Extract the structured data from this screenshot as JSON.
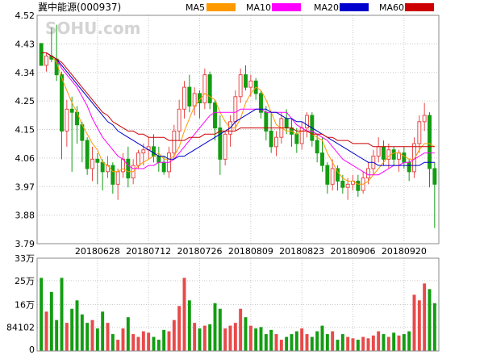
{
  "title": "冀中能源(000937)",
  "watermark": "SOHU.com",
  "legend": [
    {
      "name": "MA5",
      "color": "#ff9900"
    },
    {
      "name": "MA10",
      "color": "#ff00ff"
    },
    {
      "name": "MA20",
      "color": "#0000cc"
    },
    {
      "name": "MA60",
      "color": "#cc0000"
    }
  ],
  "colors": {
    "up": "#e84a4a",
    "down": "#129d12",
    "grid": "#c9c9c9",
    "frame": "#888888"
  },
  "chart_data": [
    {
      "type": "candlestick",
      "ylim": [
        3.79,
        4.52
      ],
      "yticks": [
        "4.52",
        "4.43",
        "4.34",
        "4.25",
        "4.15",
        "4.06",
        "3.97",
        "3.88",
        "3.79"
      ],
      "xticks": [
        {
          "label": "20180628",
          "index": 11
        },
        {
          "label": "20180712",
          "index": 21
        },
        {
          "label": "20180726",
          "index": 31
        },
        {
          "label": "20180809",
          "index": 41
        },
        {
          "label": "20180823",
          "index": 51
        },
        {
          "label": "20180906",
          "index": 61
        },
        {
          "label": "20180920",
          "index": 71
        }
      ],
      "ohlc": [
        [
          4.43,
          4.43,
          4.36,
          4.36
        ],
        [
          4.36,
          4.4,
          4.34,
          4.39
        ],
        [
          4.39,
          4.48,
          4.37,
          4.38
        ],
        [
          4.38,
          4.49,
          4.31,
          4.33
        ],
        [
          4.33,
          4.34,
          4.06,
          4.15
        ],
        [
          4.15,
          4.25,
          4.1,
          4.22
        ],
        [
          4.22,
          4.26,
          4.02,
          4.21
        ],
        [
          4.21,
          4.23,
          4.11,
          4.17
        ],
        [
          4.17,
          4.18,
          4.05,
          4.12
        ],
        [
          4.12,
          4.13,
          4.01,
          4.03
        ],
        [
          4.03,
          4.1,
          3.99,
          4.06
        ],
        [
          4.06,
          4.08,
          3.98,
          4.05
        ],
        [
          4.05,
          4.06,
          3.96,
          4.02
        ],
        [
          4.02,
          4.07,
          4.0,
          4.04
        ],
        [
          4.04,
          4.05,
          3.95,
          3.98
        ],
        [
          3.98,
          4.03,
          3.93,
          4.02
        ],
        [
          4.02,
          4.08,
          4.0,
          4.06
        ],
        [
          4.06,
          4.1,
          3.97,
          4.0
        ],
        [
          4.0,
          4.06,
          3.98,
          4.04
        ],
        [
          4.04,
          4.09,
          4.03,
          4.08
        ],
        [
          4.08,
          4.11,
          4.04,
          4.09
        ],
        [
          4.09,
          4.13,
          4.06,
          4.1
        ],
        [
          4.1,
          4.14,
          4.05,
          4.07
        ],
        [
          4.07,
          4.1,
          4.02,
          4.05
        ],
        [
          4.05,
          4.07,
          4.01,
          4.02
        ],
        [
          4.02,
          4.1,
          4.0,
          4.08
        ],
        [
          4.08,
          4.17,
          4.06,
          4.15
        ],
        [
          4.15,
          4.25,
          4.12,
          4.22
        ],
        [
          4.22,
          4.31,
          4.19,
          4.29
        ],
        [
          4.29,
          4.33,
          4.21,
          4.23
        ],
        [
          4.23,
          4.29,
          4.2,
          4.27
        ],
        [
          4.27,
          4.28,
          4.19,
          4.24
        ],
        [
          4.24,
          4.35,
          4.22,
          4.33
        ],
        [
          4.33,
          4.34,
          4.22,
          4.24
        ],
        [
          4.24,
          4.25,
          4.12,
          4.16
        ],
        [
          4.16,
          4.2,
          4.01,
          4.06
        ],
        [
          4.06,
          4.15,
          4.04,
          4.14
        ],
        [
          4.14,
          4.2,
          4.1,
          4.18
        ],
        [
          4.18,
          4.28,
          4.15,
          4.26
        ],
        [
          4.26,
          4.35,
          4.24,
          4.33
        ],
        [
          4.33,
          4.36,
          4.28,
          4.29
        ],
        [
          4.29,
          4.33,
          4.26,
          4.31
        ],
        [
          4.31,
          4.32,
          4.25,
          4.27
        ],
        [
          4.27,
          4.28,
          4.19,
          4.21
        ],
        [
          4.21,
          4.23,
          4.12,
          4.15
        ],
        [
          4.15,
          4.21,
          4.08,
          4.1
        ],
        [
          4.1,
          4.15,
          4.07,
          4.13
        ],
        [
          4.13,
          4.21,
          4.11,
          4.19
        ],
        [
          4.19,
          4.22,
          4.14,
          4.16
        ],
        [
          4.16,
          4.19,
          4.1,
          4.14
        ],
        [
          4.14,
          4.16,
          4.08,
          4.11
        ],
        [
          4.11,
          4.18,
          4.09,
          4.16
        ],
        [
          4.16,
          4.21,
          4.13,
          4.2
        ],
        [
          4.2,
          4.21,
          4.1,
          4.12
        ],
        [
          4.12,
          4.14,
          4.05,
          4.08
        ],
        [
          4.08,
          4.13,
          4.02,
          4.04
        ],
        [
          4.04,
          4.05,
          3.95,
          3.98
        ],
        [
          3.98,
          4.06,
          3.96,
          4.03
        ],
        [
          4.03,
          4.04,
          3.96,
          3.99
        ],
        [
          3.99,
          4.01,
          3.95,
          3.97
        ],
        [
          3.97,
          4.0,
          3.93,
          3.98
        ],
        [
          3.98,
          4.01,
          3.96,
          3.99
        ],
        [
          3.99,
          4.01,
          3.94,
          3.96
        ],
        [
          3.96,
          4.02,
          3.95,
          4.0
        ],
        [
          4.0,
          4.05,
          3.98,
          4.03
        ],
        [
          4.03,
          4.09,
          4.01,
          4.07
        ],
        [
          4.07,
          4.13,
          4.05,
          4.1
        ],
        [
          4.1,
          4.12,
          4.04,
          4.06
        ],
        [
          4.06,
          4.11,
          4.03,
          4.09
        ],
        [
          4.09,
          4.1,
          4.04,
          4.06
        ],
        [
          4.06,
          4.09,
          4.02,
          4.08
        ],
        [
          4.08,
          4.1,
          4.03,
          4.05
        ],
        [
          4.05,
          4.06,
          3.99,
          4.02
        ],
        [
          4.02,
          4.13,
          4.0,
          4.11
        ],
        [
          4.11,
          4.2,
          4.08,
          4.18
        ],
        [
          4.18,
          4.24,
          4.15,
          4.2
        ],
        [
          4.2,
          4.21,
          3.97,
          4.03
        ],
        [
          4.03,
          4.05,
          3.84,
          3.98
        ]
      ],
      "ma": [
        {
          "name": "MA5",
          "values": [
            4.4,
            4.4,
            4.39,
            4.37,
            4.32,
            4.28,
            4.24,
            4.21,
            4.17,
            4.14,
            4.11,
            4.09,
            4.05,
            4.04,
            4.02,
            4.02,
            4.03,
            4.02,
            4.02,
            4.04,
            4.05,
            4.06,
            4.07,
            4.08,
            4.06,
            4.06,
            4.07,
            4.1,
            4.15,
            4.19,
            4.23,
            4.25,
            4.27,
            4.26,
            4.25,
            4.21,
            4.18,
            4.16,
            4.16,
            4.19,
            4.24,
            4.27,
            4.29,
            4.28,
            4.25,
            4.21,
            4.17,
            4.16,
            4.15,
            4.15,
            4.14,
            4.15,
            4.15,
            4.14,
            4.13,
            4.12,
            4.08,
            4.05,
            4.02,
            4.0,
            3.99,
            3.99,
            3.98,
            3.98,
            3.99,
            4.01,
            4.03,
            4.05,
            4.07,
            4.08,
            4.08,
            4.07,
            4.06,
            4.06,
            4.09,
            4.11,
            4.11,
            4.1
          ]
        },
        {
          "name": "MA10",
          "values": [
            4.4,
            4.4,
            4.39,
            4.38,
            4.35,
            4.33,
            4.31,
            4.29,
            4.26,
            4.23,
            4.19,
            4.16,
            4.13,
            4.11,
            4.09,
            4.07,
            4.06,
            4.04,
            4.03,
            4.03,
            4.03,
            4.04,
            4.04,
            4.05,
            4.05,
            4.05,
            4.06,
            4.08,
            4.1,
            4.12,
            4.14,
            4.16,
            4.18,
            4.2,
            4.21,
            4.21,
            4.21,
            4.21,
            4.21,
            4.22,
            4.22,
            4.22,
            4.22,
            4.22,
            4.21,
            4.21,
            4.21,
            4.21,
            4.21,
            4.19,
            4.17,
            4.16,
            4.15,
            4.15,
            4.14,
            4.13,
            4.12,
            4.1,
            4.08,
            4.06,
            4.05,
            4.04,
            4.03,
            4.02,
            4.01,
            4.01,
            4.01,
            4.02,
            4.03,
            4.04,
            4.04,
            4.05,
            4.05,
            4.06,
            4.07,
            4.08,
            4.08,
            4.08
          ]
        },
        {
          "name": "MA20",
          "values": [
            4.4,
            4.4,
            4.39,
            4.38,
            4.36,
            4.34,
            4.32,
            4.3,
            4.28,
            4.26,
            4.24,
            4.22,
            4.2,
            4.18,
            4.17,
            4.15,
            4.14,
            4.13,
            4.12,
            4.11,
            4.1,
            4.09,
            4.08,
            4.07,
            4.07,
            4.06,
            4.06,
            4.07,
            4.07,
            4.08,
            4.09,
            4.1,
            4.11,
            4.12,
            4.13,
            4.14,
            4.15,
            4.16,
            4.18,
            4.19,
            4.2,
            4.21,
            4.22,
            4.22,
            4.22,
            4.21,
            4.21,
            4.2,
            4.19,
            4.19,
            4.18,
            4.18,
            4.17,
            4.16,
            4.15,
            4.14,
            4.13,
            4.12,
            4.11,
            4.1,
            4.09,
            4.08,
            4.07,
            4.06,
            4.05,
            4.05,
            4.04,
            4.04,
            4.04,
            4.04,
            4.04,
            4.04,
            4.04,
            4.04,
            4.04,
            4.05,
            4.05,
            4.05
          ]
        },
        {
          "name": "MA60",
          "values": [
            4.4,
            4.4,
            4.39,
            4.38,
            4.37,
            4.35,
            4.33,
            4.31,
            4.29,
            4.27,
            4.25,
            4.23,
            4.21,
            4.2,
            4.18,
            4.17,
            4.16,
            4.15,
            4.15,
            4.14,
            4.14,
            4.13,
            4.13,
            4.13,
            4.13,
            4.12,
            4.12,
            4.12,
            4.12,
            4.13,
            4.13,
            4.13,
            4.14,
            4.14,
            4.14,
            4.15,
            4.15,
            4.15,
            4.15,
            4.16,
            4.16,
            4.16,
            4.16,
            4.16,
            4.16,
            4.16,
            4.16,
            4.16,
            4.16,
            4.16,
            4.15,
            4.15,
            4.15,
            4.14,
            4.14,
            4.14,
            4.13,
            4.13,
            4.12,
            4.12,
            4.12,
            4.11,
            4.11,
            4.11,
            4.11,
            4.1,
            4.1,
            4.1,
            4.1,
            4.1,
            4.1,
            4.1,
            4.1,
            4.1,
            4.1,
            4.1,
            4.1,
            4.1
          ]
        }
      ]
    },
    {
      "type": "bar",
      "ylim": [
        0,
        330000
      ],
      "yticks": [
        {
          "label": "33万",
          "value": 330000
        },
        {
          "label": "25万",
          "value": 250000
        },
        {
          "label": "16万",
          "value": 165000
        },
        {
          "label": "84102",
          "value": 84102
        },
        {
          "label": "0",
          "value": 0
        }
      ],
      "values": [
        260000,
        140000,
        210000,
        110000,
        260000,
        100000,
        150000,
        180000,
        130000,
        100000,
        110000,
        80000,
        140000,
        100000,
        60000,
        40000,
        80000,
        120000,
        60000,
        50000,
        70000,
        65000,
        50000,
        40000,
        75000,
        70000,
        110000,
        160000,
        260000,
        180000,
        100000,
        80000,
        90000,
        95000,
        170000,
        150000,
        80000,
        90000,
        100000,
        150000,
        120000,
        90000,
        80000,
        85000,
        60000,
        75000,
        60000,
        40000,
        50000,
        60000,
        70000,
        80000,
        60000,
        50000,
        70000,
        90000,
        60000,
        70000,
        40000,
        60000,
        50000,
        45000,
        40000,
        50000,
        45000,
        55000,
        70000,
        60000,
        50000,
        65000,
        55000,
        60000,
        70000,
        200000,
        180000,
        240000,
        220000,
        170000
      ]
    }
  ]
}
